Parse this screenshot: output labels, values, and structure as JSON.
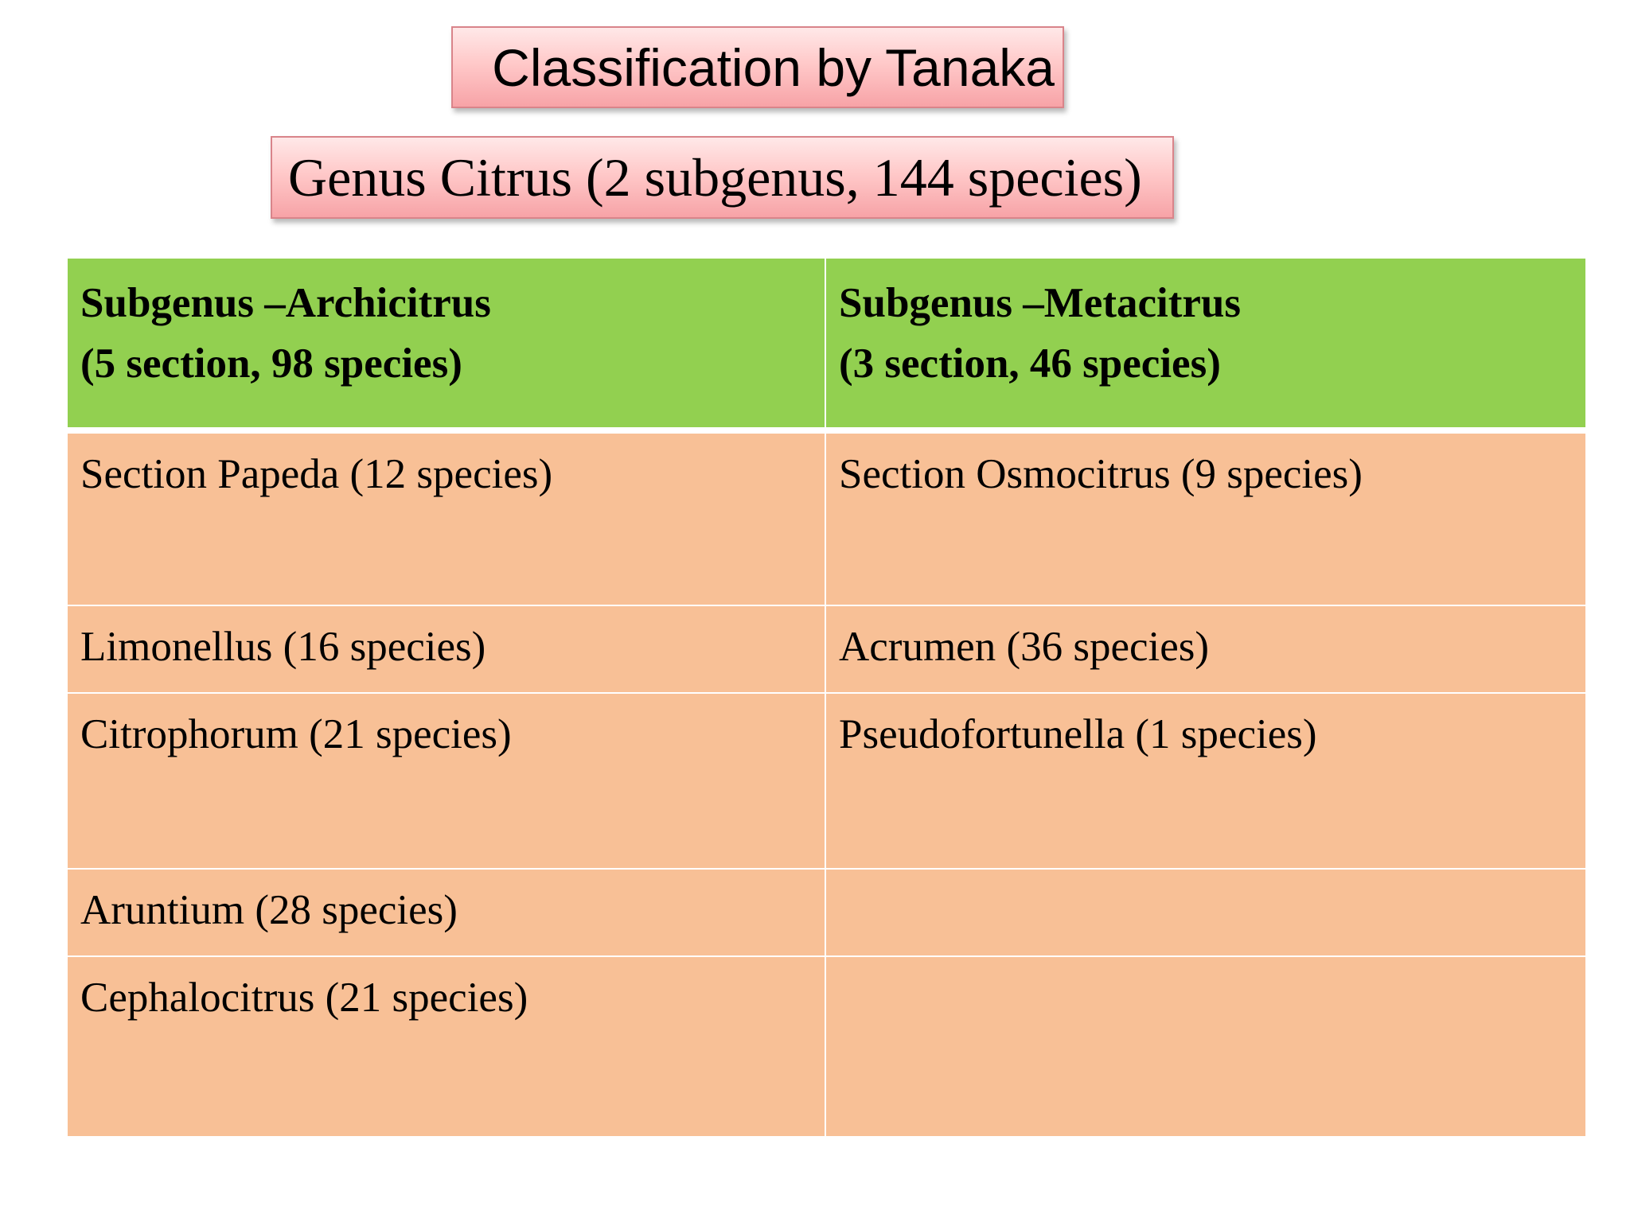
{
  "title": "Classification by Tanaka",
  "subtitle": "Genus Citrus (2 subgenus, 144 species)",
  "table": {
    "header": [
      {
        "line1": "Subgenus –Archicitrus",
        "line2": "(5 section, 98 species)"
      },
      {
        "line1": "Subgenus –Metacitrus",
        "line2": "(3 section, 46 species)"
      }
    ],
    "rows": [
      [
        "Section Papeda (12 species)",
        "Section Osmocitrus (9 species)"
      ],
      [
        "Limonellus (16 species)",
        "Acrumen (36 species)"
      ],
      [
        "Citrophorum (21 species)",
        "Pseudofortunella (1 species)"
      ],
      [
        "Aruntium (28 species)",
        ""
      ],
      [
        "Cephalocitrus (21 species)",
        ""
      ]
    ]
  },
  "colors": {
    "header_fill": "#92d050",
    "body_fill": "#f8c096",
    "title_box_fill": "#ffc9c9",
    "title_box_border": "#d9848a"
  }
}
